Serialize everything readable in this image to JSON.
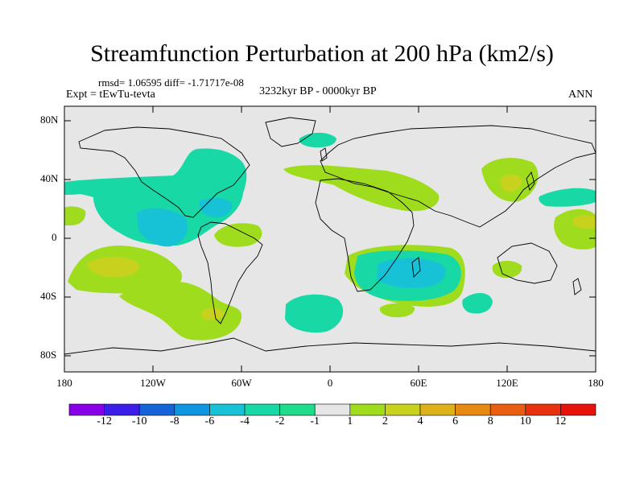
{
  "title": "Streamfunction Perturbation at 200 hPa (km2/s)",
  "stats": "rmsd= 1.06595  diff= -1.71717e-08",
  "experiment": "Expt = tEwTu-tevta",
  "period": "3232kyr BP - 0000kyr BP",
  "season": "ANN",
  "map": {
    "lat_labels": [
      "80N",
      "40N",
      "0",
      "40S",
      "80S"
    ],
    "lon_labels": [
      "180",
      "120W",
      "60W",
      "0",
      "60E",
      "120E",
      "180"
    ],
    "lat_range": [
      -90,
      90
    ],
    "lon_range": [
      -180,
      180
    ]
  },
  "colorbar": {
    "labels": [
      "-12",
      "-10",
      "-8",
      "-6",
      "-4",
      "-2",
      "-1",
      "1",
      "2",
      "4",
      "6",
      "8",
      "10",
      "12"
    ],
    "colors": [
      "#8a00e6",
      "#3b1ee8",
      "#1464d8",
      "#1096e0",
      "#17c2d6",
      "#18d8a6",
      "#1fdc8a",
      "#e6e6e6",
      "#a0dc1e",
      "#c8d21e",
      "#deb01a",
      "#e68a14",
      "#e85e12",
      "#e8320e",
      "#e8120c"
    ]
  }
}
